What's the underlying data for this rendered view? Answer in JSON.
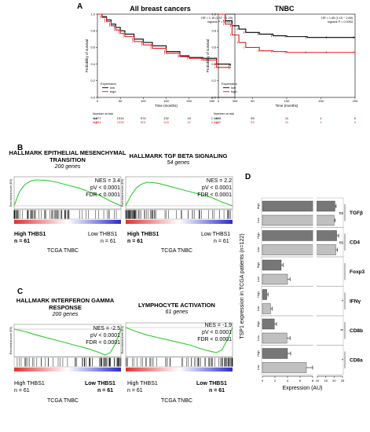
{
  "panels": {
    "a": "A",
    "b": "B",
    "c": "C",
    "d": "D"
  },
  "chart_data": [
    {
      "type": "line",
      "title": "All breast cancers",
      "xlabel": "Time (months)",
      "ylabel": "Probability of survival",
      "xlim": [
        0,
        300
      ],
      "ylim": [
        0,
        1
      ],
      "xticks": [
        "0",
        "50",
        "100",
        "150",
        "200",
        "250",
        "300"
      ],
      "yticks": [
        "0.0",
        "0.2",
        "0.4",
        "0.6",
        "0.8",
        "1.0"
      ],
      "stats": [
        "HR = 1.15 (1.07 − 1.33)",
        "logrank P = 0.0012"
      ],
      "legend_title": "Expression",
      "series": [
        {
          "name": "low",
          "color": "#000000",
          "x": [
            0,
            10,
            20,
            30,
            40,
            50,
            60,
            80,
            100,
            120,
            150,
            180,
            200,
            230,
            260,
            290
          ],
          "y": [
            1.0,
            0.97,
            0.93,
            0.88,
            0.84,
            0.8,
            0.76,
            0.7,
            0.66,
            0.62,
            0.55,
            0.5,
            0.48,
            0.47,
            0.4,
            0.38
          ]
        },
        {
          "name": "high",
          "color": "#e41a1c",
          "x": [
            0,
            10,
            20,
            30,
            40,
            50,
            60,
            80,
            100,
            120,
            150,
            180,
            200,
            230,
            260,
            290
          ],
          "y": [
            1.0,
            0.96,
            0.91,
            0.86,
            0.81,
            0.77,
            0.73,
            0.67,
            0.63,
            0.59,
            0.53,
            0.49,
            0.47,
            0.45,
            0.36,
            0.35
          ]
        }
      ],
      "risk_table": {
        "title": "Number at risk",
        "times": [
          "0",
          "50",
          "100",
          "150",
          "200",
          "250"
        ],
        "rows": [
          {
            "label": "low",
            "color": "#000000",
            "values": [
              "1977",
              "1314",
              "574",
              "132",
              "15",
              "1"
            ]
          },
          {
            "label": "high",
            "color": "#e41a1c",
            "values": [
              "1974",
              "1228",
              "501",
              "104",
              "12",
              "2"
            ]
          }
        ]
      }
    },
    {
      "type": "line",
      "title": "TNBC",
      "xlabel": "Time (months)",
      "ylabel": "Probability of survival",
      "xlim": [
        0,
        200
      ],
      "ylim": [
        0,
        1
      ],
      "xticks": [
        "0",
        "50",
        "100",
        "150",
        "200"
      ],
      "yticks": [
        "0.0",
        "0.2",
        "0.4",
        "0.6",
        "0.8",
        "1.0"
      ],
      "stats": [
        "HR = 1.65 (1.15 − 2.66)",
        "logrank P = 0.0053"
      ],
      "legend_title": "Expression",
      "series": [
        {
          "name": "low",
          "color": "#000000",
          "x": [
            0,
            10,
            20,
            30,
            40,
            60,
            80,
            100,
            130,
            160,
            200
          ],
          "y": [
            1.0,
            0.92,
            0.86,
            0.82,
            0.78,
            0.76,
            0.74,
            0.73,
            0.72,
            0.72,
            0.72
          ]
        },
        {
          "name": "high",
          "color": "#e41a1c",
          "x": [
            0,
            10,
            20,
            30,
            40,
            60,
            80,
            100,
            130,
            160,
            200
          ],
          "y": [
            1.0,
            0.88,
            0.75,
            0.66,
            0.6,
            0.56,
            0.55,
            0.54,
            0.54,
            0.54,
            0.54
          ]
        }
      ],
      "risk_table": {
        "title": "Number at risk",
        "times": [
          "0",
          "50",
          "100",
          "150",
          "200"
        ],
        "rows": [
          {
            "label": "low",
            "color": "#000000",
            "values": [
              "128",
              "55",
              "11",
              "1",
              "0"
            ]
          },
          {
            "label": "high",
            "color": "#e41a1c",
            "values": [
              "127",
              "53",
              "11",
              "2",
              "0"
            ]
          }
        ]
      }
    },
    {
      "type": "line",
      "title": "HALLMARK EPITHELIAL MESENCHYMAL TRANSITION",
      "subtitle": "200 genes",
      "ylabel": "Enrichment score (ES)",
      "stats": [
        "NES = 3.4",
        "pV < 0.0001",
        "FDR < 0.0001"
      ],
      "left_group": "High THBS1",
      "left_n": "n = 61",
      "right_group": "Low THBS1",
      "right_n": "n = 61",
      "footer": "TCGA TNBC",
      "x": [
        0,
        5,
        10,
        15,
        20,
        30,
        40,
        50,
        60,
        70,
        80,
        90,
        100
      ],
      "y": [
        0.0,
        0.3,
        0.45,
        0.52,
        0.55,
        0.54,
        0.5,
        0.44,
        0.38,
        0.3,
        0.22,
        0.1,
        0.0
      ]
    },
    {
      "type": "line",
      "title": "HALLMARK TGF BETA SIGNALING",
      "subtitle": "54 genes",
      "ylabel": "Enrichment score (ES)",
      "stats": [
        "NES = 2.2",
        "pV < 0.0001",
        "FDR < 0.0001"
      ],
      "left_group": "High THBS1",
      "left_n": "n = 61",
      "right_group": "Low THBS1",
      "right_n": "n = 61",
      "footer": "TCGA TNBC",
      "x": [
        0,
        5,
        10,
        15,
        20,
        30,
        40,
        50,
        60,
        70,
        80,
        90,
        100
      ],
      "y": [
        0.0,
        0.22,
        0.38,
        0.46,
        0.5,
        0.48,
        0.42,
        0.36,
        0.3,
        0.24,
        0.18,
        0.08,
        0.0
      ]
    },
    {
      "type": "line",
      "title": "HALLMARK INTERFERON GAMMA RESPONSE",
      "subtitle": "200 genes",
      "ylabel": "Enrichment score (ES)",
      "stats": [
        "NES = -2.5",
        "pV < 0.0001",
        "FDR < 0.0001"
      ],
      "left_group": "High THBS1",
      "left_n": "n = 61",
      "right_group": "Low THBS1",
      "right_n": "n = 61",
      "footer": "TCGA TNBC",
      "x": [
        0,
        10,
        20,
        30,
        40,
        50,
        60,
        70,
        80,
        85,
        90,
        95,
        100
      ],
      "y": [
        0.0,
        -0.05,
        -0.12,
        -0.18,
        -0.24,
        -0.3,
        -0.36,
        -0.42,
        -0.5,
        -0.55,
        -0.5,
        -0.3,
        0.0
      ]
    },
    {
      "type": "line",
      "title": "LYMPHOCYTE ACTIVATION",
      "subtitle": "61 genes",
      "ylabel": "Enrichment score (ES)",
      "stats": [
        "NES = -1.9",
        "pV < 0.0001",
        "FDR < 0.0001"
      ],
      "left_group": "High THBS1",
      "left_n": "n = 61",
      "right_group": "Low THBS1",
      "right_n": "n = 61",
      "footer": "TCGA TNBC",
      "x": [
        0,
        10,
        20,
        30,
        40,
        50,
        60,
        70,
        80,
        85,
        90,
        95,
        100
      ],
      "y": [
        0.0,
        -0.08,
        -0.15,
        -0.2,
        -0.25,
        -0.3,
        -0.35,
        -0.42,
        -0.48,
        -0.5,
        -0.45,
        -0.25,
        0.0
      ]
    },
    {
      "type": "bar",
      "orientation": "horizontal",
      "ylabel": "TSP1 expression in TCGA patients (n=122)",
      "xlabel": "Expression (AU)",
      "xticks": [
        "0",
        "2",
        "4",
        "6",
        "8",
        "10",
        "15",
        "20",
        "25"
      ],
      "groups": [
        {
          "name": "TGFβ",
          "sig": "ns",
          "bars": [
            {
              "label": "High",
              "value": 20.5,
              "err": 0.7
            },
            {
              "label": "Low",
              "value": 20.0,
              "err": 0.6
            }
          ]
        },
        {
          "name": "CD4",
          "sig": "ns",
          "bars": [
            {
              "label": "High",
              "value": 21.5,
              "err": 1.2
            },
            {
              "label": "Low",
              "value": 21.0,
              "err": 1.0
            }
          ]
        },
        {
          "name": "Foxp3",
          "sig": "",
          "bars": [
            {
              "label": "High",
              "value": 3.0,
              "err": 0.3
            },
            {
              "label": "Low",
              "value": 4.0,
              "err": 0.4
            }
          ]
        },
        {
          "name": "IFNγ",
          "sig": "*",
          "bars": [
            {
              "label": "High",
              "value": 0.7,
              "err": 0.2
            },
            {
              "label": "Low",
              "value": 1.3,
              "err": 0.25
            }
          ]
        },
        {
          "name": "CD8b",
          "sig": "**",
          "bars": [
            {
              "label": "High",
              "value": 1.9,
              "err": 0.35
            },
            {
              "label": "Low",
              "value": 3.9,
              "err": 0.5
            }
          ]
        },
        {
          "name": "CD8a",
          "sig": "*",
          "bars": [
            {
              "label": "High",
              "value": 4.0,
              "err": 0.5
            },
            {
              "label": "Low",
              "value": 7.0,
              "err": 1.0
            }
          ]
        }
      ]
    }
  ]
}
